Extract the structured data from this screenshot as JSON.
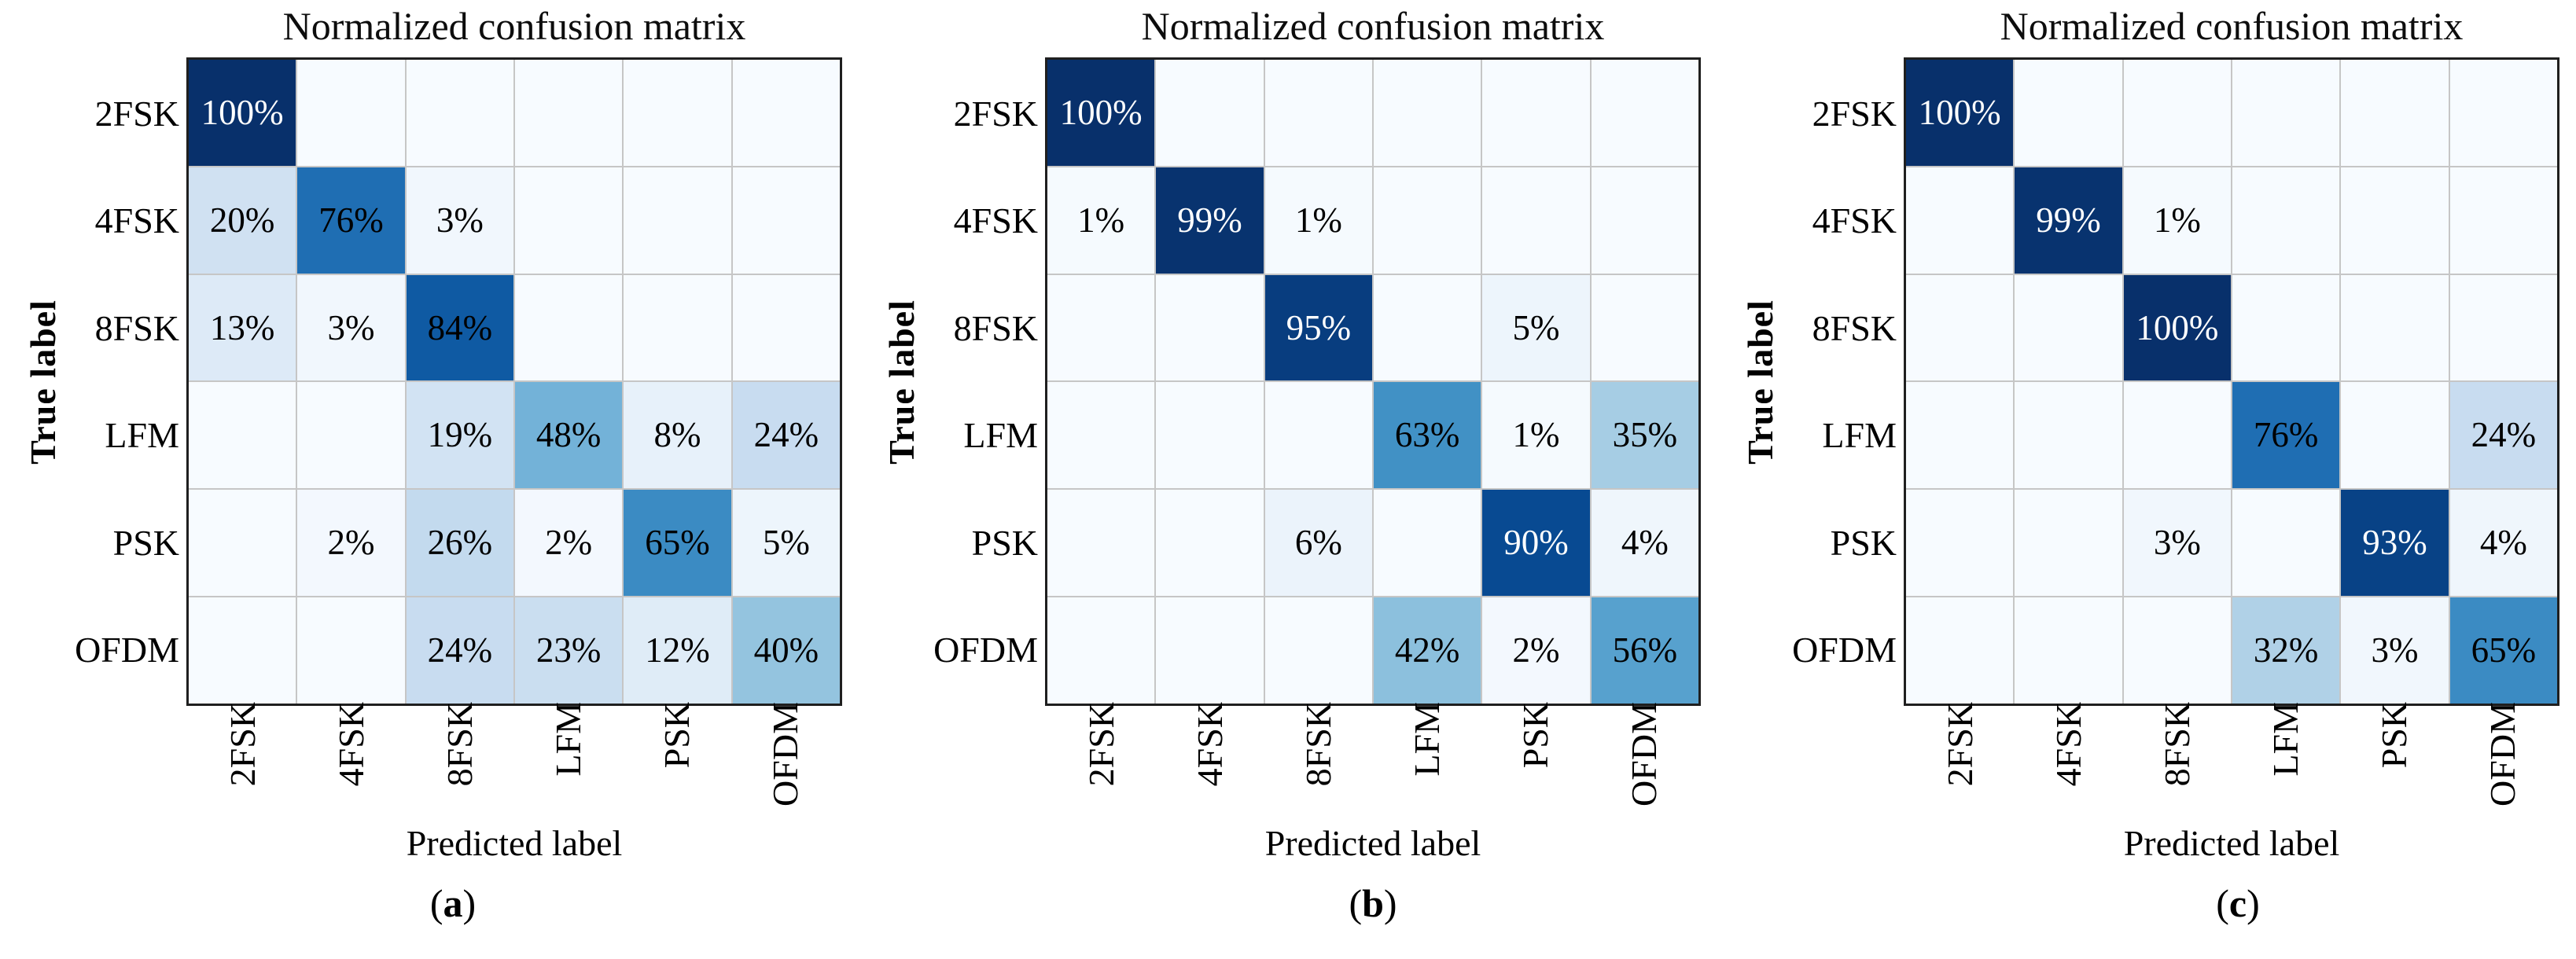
{
  "figure": {
    "title": "Normalized confusion matrix",
    "xlabel": "Predicted label",
    "ylabel": "True label",
    "classes": [
      "2FSK",
      "4FSK",
      "8FSK",
      "LFM",
      "PSK",
      "OFDM"
    ],
    "cell_text_suffix": "%",
    "colors": {
      "cmap_low": "#f7fbff",
      "cmap_high": "#08306b",
      "outer_border": "#1f1f1f",
      "grid_line": "#c6c6c6",
      "title_color": "#0d0d0d",
      "cell_text_dark": "#000000",
      "cell_text_light": "#ffffff"
    }
  },
  "panels": [
    {
      "caption_open": "(",
      "caption_letter": "a",
      "caption_close": ")"
    },
    {
      "caption_open": "(",
      "caption_letter": "b",
      "caption_close": ")"
    },
    {
      "caption_open": "(",
      "caption_letter": "c",
      "caption_close": ")"
    }
  ],
  "chart_data": [
    {
      "type": "heatmap",
      "panel_caption": "(a)",
      "title": "Normalized confusion matrix",
      "xlabel": "Predicted label",
      "ylabel": "True label",
      "x_categories": [
        "2FSK",
        "4FSK",
        "8FSK",
        "LFM",
        "PSK",
        "OFDM"
      ],
      "y_categories": [
        "2FSK",
        "4FSK",
        "8FSK",
        "LFM",
        "PSK",
        "OFDM"
      ],
      "colormap": "Blues",
      "value_range": [
        0,
        100
      ],
      "values_percent": [
        [
          100,
          null,
          null,
          null,
          null,
          null
        ],
        [
          20,
          76,
          3,
          null,
          null,
          null
        ],
        [
          13,
          3,
          84,
          null,
          null,
          null
        ],
        [
          null,
          null,
          19,
          48,
          8,
          24
        ],
        [
          null,
          2,
          26,
          2,
          65,
          5
        ],
        [
          null,
          null,
          24,
          23,
          12,
          40
        ]
      ]
    },
    {
      "type": "heatmap",
      "panel_caption": "(b)",
      "title": "Normalized confusion matrix",
      "xlabel": "Predicted label",
      "ylabel": "True label",
      "x_categories": [
        "2FSK",
        "4FSK",
        "8FSK",
        "LFM",
        "PSK",
        "OFDM"
      ],
      "y_categories": [
        "2FSK",
        "4FSK",
        "8FSK",
        "LFM",
        "PSK",
        "OFDM"
      ],
      "colormap": "Blues",
      "value_range": [
        0,
        100
      ],
      "values_percent": [
        [
          100,
          null,
          null,
          null,
          null,
          null
        ],
        [
          1,
          99,
          1,
          null,
          null,
          null
        ],
        [
          null,
          null,
          95,
          null,
          5,
          null
        ],
        [
          null,
          null,
          null,
          63,
          1,
          35
        ],
        [
          null,
          null,
          6,
          null,
          90,
          4
        ],
        [
          null,
          null,
          null,
          42,
          2,
          56
        ]
      ]
    },
    {
      "type": "heatmap",
      "panel_caption": "(c)",
      "title": "Normalized confusion matrix",
      "xlabel": "Predicted label",
      "ylabel": "True label",
      "x_categories": [
        "2FSK",
        "4FSK",
        "8FSK",
        "LFM",
        "PSK",
        "OFDM"
      ],
      "y_categories": [
        "2FSK",
        "4FSK",
        "8FSK",
        "LFM",
        "PSK",
        "OFDM"
      ],
      "colormap": "Blues",
      "value_range": [
        0,
        100
      ],
      "values_percent": [
        [
          100,
          null,
          null,
          null,
          null,
          null
        ],
        [
          null,
          99,
          1,
          null,
          null,
          null
        ],
        [
          null,
          null,
          100,
          null,
          null,
          null
        ],
        [
          null,
          null,
          null,
          76,
          null,
          24
        ],
        [
          null,
          null,
          3,
          null,
          93,
          4
        ],
        [
          null,
          null,
          null,
          32,
          3,
          65
        ]
      ]
    }
  ]
}
